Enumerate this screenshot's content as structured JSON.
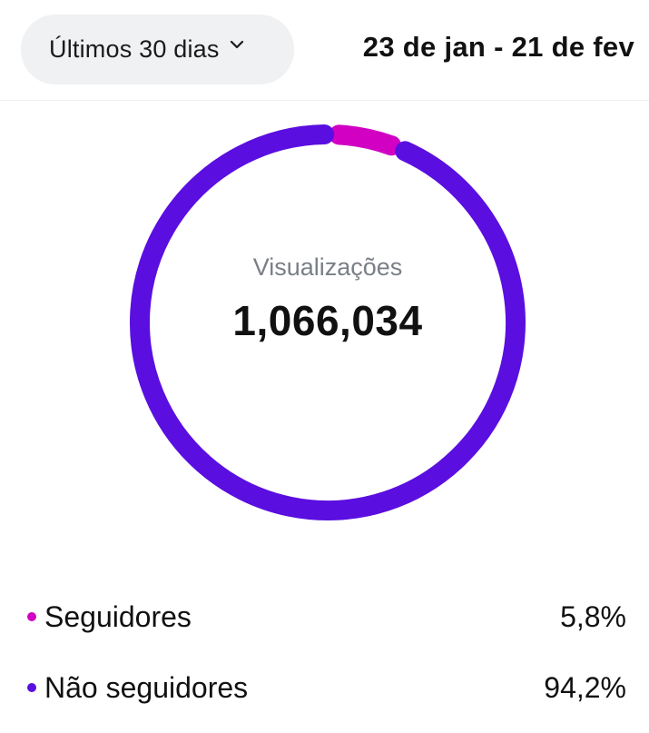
{
  "header": {
    "range_label": "Últimos 30 dias",
    "date_range": "23 de jan - 21 de fev"
  },
  "summary": {
    "label": "Visualizações",
    "value": "1,066,034"
  },
  "legend": [
    {
      "name": "Seguidores",
      "value": "5,8%",
      "color": "#d100c2"
    },
    {
      "name": "Não seguidores",
      "value": "94,2%",
      "color": "#5a0ee0"
    }
  ],
  "chart_data": {
    "type": "pie",
    "categories": [
      "Seguidores",
      "Não seguidores"
    ],
    "values": [
      5.8,
      94.2
    ]
  },
  "icons": {
    "dropdown": "chevron-down-icon"
  }
}
